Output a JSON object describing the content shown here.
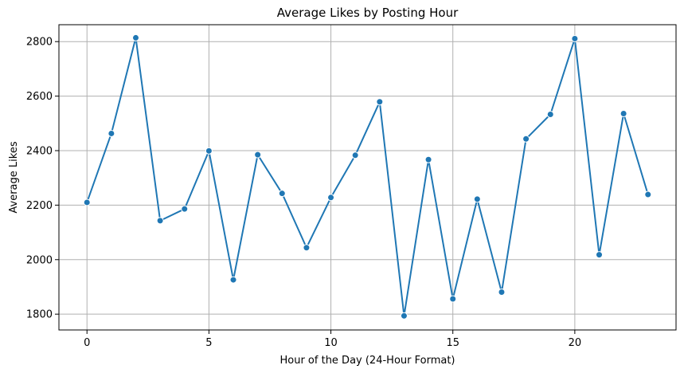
{
  "chart_data": {
    "type": "line",
    "title": "Average Likes by Posting Hour",
    "xlabel": "Hour of the Day (24-Hour Format)",
    "ylabel": "Average Likes",
    "xlim": [
      -1.15,
      24.15
    ],
    "ylim": [
      1742,
      2862
    ],
    "xticks": [
      0,
      5,
      10,
      15,
      20
    ],
    "yticks": [
      1800,
      2000,
      2200,
      2400,
      2600,
      2800
    ],
    "grid": true,
    "series": [
      {
        "color": "#1f77b4",
        "marker": "circle",
        "x": [
          0,
          1,
          2,
          3,
          4,
          5,
          6,
          7,
          8,
          9,
          10,
          11,
          12,
          13,
          14,
          15,
          16,
          17,
          18,
          19,
          20,
          21,
          22,
          23
        ],
        "values": [
          2210,
          2463,
          2814,
          2143,
          2186,
          2399,
          1926,
          2385,
          2243,
          2044,
          2228,
          2383,
          2579,
          1794,
          2367,
          1856,
          2222,
          1881,
          2443,
          2533,
          2811,
          2018,
          2536,
          2239
        ]
      }
    ]
  }
}
